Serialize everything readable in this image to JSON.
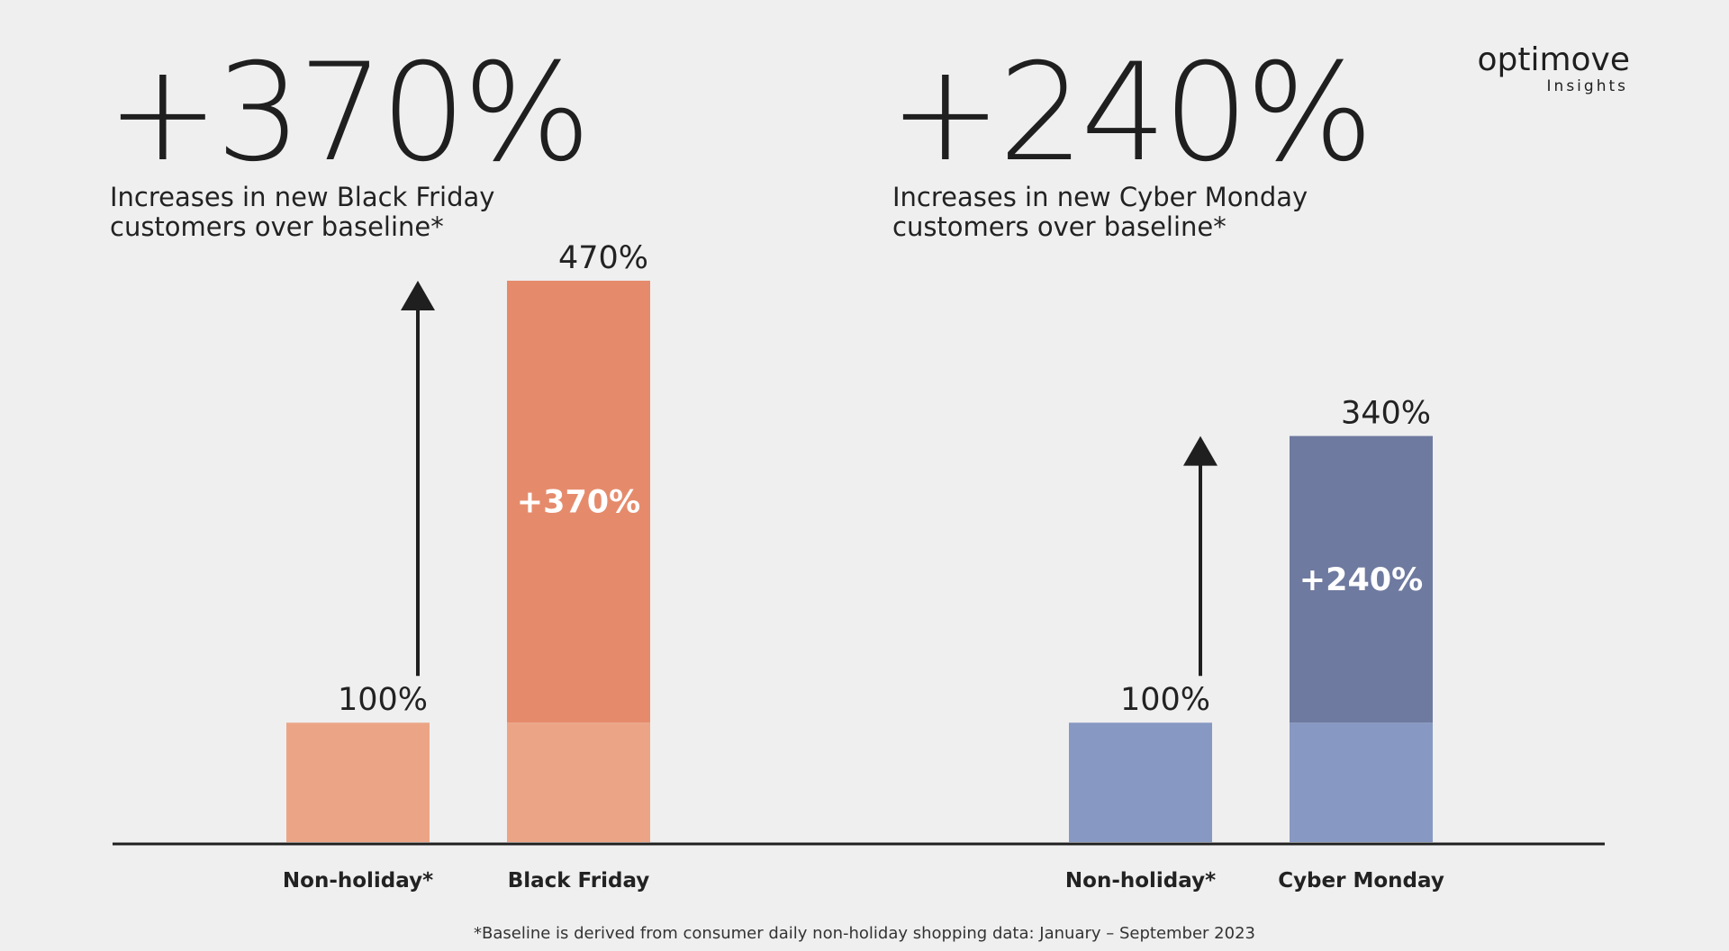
{
  "logo": {
    "name": "optimove",
    "tagline": "Insights"
  },
  "footnote": "*Baseline is derived from consumer daily non-holiday shopping data: January – September 2023",
  "chart_data": [
    {
      "type": "bar",
      "stacked": true,
      "headline": "+370%",
      "subtitle": [
        "Increases in new Black Friday",
        "customers over baseline*"
      ],
      "categories": [
        "Non-holiday*",
        "Black Friday"
      ],
      "series": [
        {
          "color": "#eba586",
          "values": [
            100,
            100
          ]
        },
        {
          "color": "#e58b6c",
          "values": [
            null,
            370
          ],
          "value_labels": [
            null,
            "+370%"
          ]
        }
      ],
      "totals": [
        100,
        470
      ],
      "total_labels": [
        "100%",
        "470%"
      ],
      "ylim": [
        0,
        470
      ]
    },
    {
      "type": "bar",
      "stacked": true,
      "headline": "+240%",
      "subtitle": [
        "Increases in new Cyber Monday",
        "customers over baseline*"
      ],
      "categories": [
        "Non-holiday*",
        "Cyber Monday"
      ],
      "series": [
        {
          "color": "#8799c3",
          "values": [
            100,
            100
          ]
        },
        {
          "color": "#6e7a9f",
          "values": [
            null,
            240
          ],
          "value_labels": [
            null,
            "+240%"
          ]
        }
      ],
      "totals": [
        100,
        340
      ],
      "total_labels": [
        "100%",
        "340%"
      ],
      "ylim": [
        0,
        470
      ]
    }
  ]
}
